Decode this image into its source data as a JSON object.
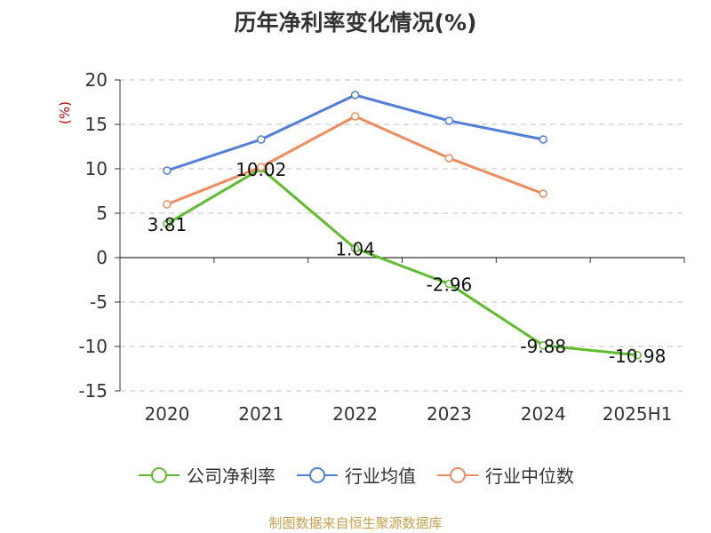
{
  "chart_data": {
    "type": "line",
    "title": "历年净利率变化情况(%)",
    "ylabel": "(%)",
    "categories": [
      "2020",
      "2021",
      "2022",
      "2023",
      "2024",
      "2025H1"
    ],
    "ylim": [
      -15,
      20
    ],
    "yticks": [
      -15,
      -10,
      -5,
      0,
      5,
      10,
      15,
      20
    ],
    "grid": true,
    "legend_position": "bottom",
    "series": [
      {
        "name": "公司净利率",
        "color": "#5cbf2a",
        "values": [
          3.81,
          10.02,
          1.04,
          -2.96,
          -9.88,
          -10.98
        ],
        "labels": [
          "3.81",
          "10.02",
          "1.04",
          "-2.96",
          "-9.88",
          "-10.98"
        ]
      },
      {
        "name": "行业均值",
        "color": "#4f7fdb",
        "values": [
          9.8,
          13.3,
          18.3,
          15.4,
          13.3,
          null
        ]
      },
      {
        "name": "行业中位数",
        "color": "#f28b5c",
        "values": [
          6.0,
          10.2,
          15.9,
          11.2,
          7.2,
          null
        ]
      }
    ]
  },
  "source": "制图数据来自恒生聚源数据库"
}
